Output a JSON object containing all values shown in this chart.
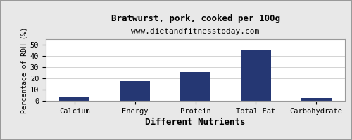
{
  "title": "Bratwurst, pork, cooked per 100g",
  "subtitle": "www.dietandfitnesstoday.com",
  "xlabel": "Different Nutrients",
  "ylabel": "Percentage of RDH (%)",
  "categories": [
    "Calcium",
    "Energy",
    "Protein",
    "Total Fat",
    "Carbohydrate"
  ],
  "values": [
    3,
    17.5,
    25.5,
    45,
    2.5
  ],
  "bar_color": "#253773",
  "ylim": [
    0,
    55
  ],
  "yticks": [
    0,
    10,
    20,
    30,
    40,
    50
  ],
  "background_color": "#e8e8e8",
  "plot_bg_color": "#ffffff",
  "title_fontsize": 9,
  "subtitle_fontsize": 8,
  "xlabel_fontsize": 9,
  "ylabel_fontsize": 7,
  "tick_fontsize": 7.5
}
